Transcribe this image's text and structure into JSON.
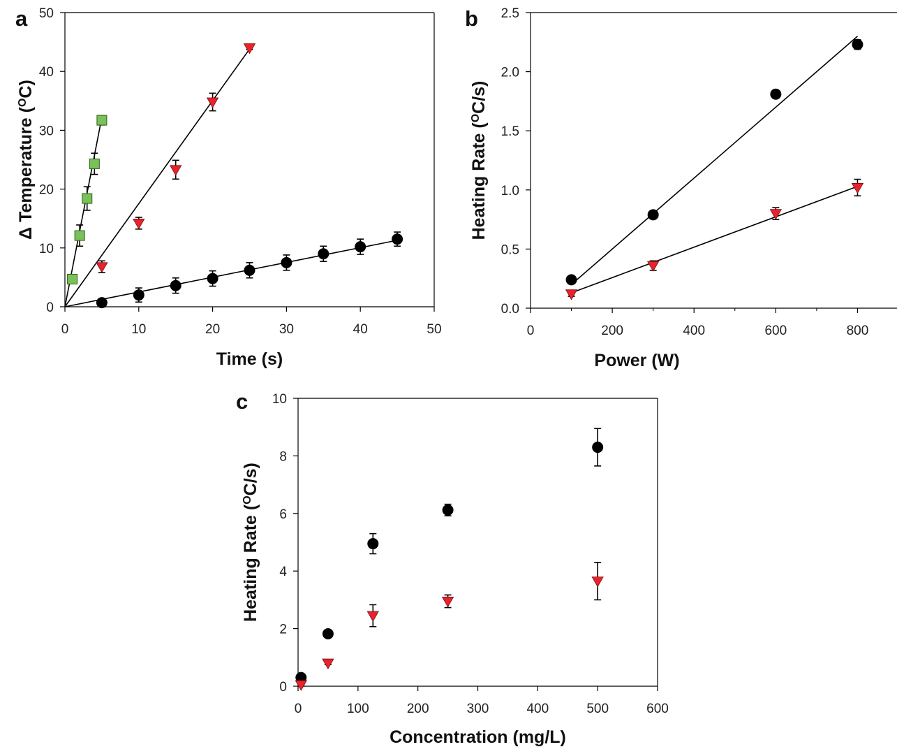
{
  "chart_data": [
    {
      "panel": "a",
      "type": "scatter",
      "xlabel": "Time (s)",
      "ylabel": "Δ Temperature (°C)",
      "ylabel_parts": [
        "Δ Temperature (",
        "O",
        "C)"
      ],
      "xlim": [
        0,
        50
      ],
      "ylim": [
        0,
        50
      ],
      "xticks": [
        0,
        10,
        20,
        30,
        40,
        50
      ],
      "yticks": [
        0,
        10,
        20,
        30,
        40,
        50
      ],
      "grid": false,
      "legend": "none",
      "series": [
        {
          "marker": "circle",
          "color": "#000000",
          "x": [
            5,
            10,
            15,
            20,
            25,
            30,
            35,
            40,
            45
          ],
          "y": [
            0.7,
            2.0,
            3.6,
            4.8,
            6.2,
            7.5,
            9.0,
            10.2,
            11.5
          ],
          "err": [
            0.6,
            1.2,
            1.3,
            1.3,
            1.3,
            1.3,
            1.3,
            1.3,
            1.2
          ],
          "fit": {
            "x": [
              0,
              45
            ],
            "y": [
              0,
              11.3
            ]
          }
        },
        {
          "marker": "triangle-down",
          "color": "#e8232b",
          "x": [
            5,
            10,
            15,
            20,
            25
          ],
          "y": [
            6.8,
            14.2,
            23.3,
            34.8,
            44.0
          ],
          "err": [
            1.0,
            1.0,
            1.6,
            1.5,
            0.3
          ],
          "fit": {
            "x": [
              0,
              25
            ],
            "y": [
              0,
              43.8
            ]
          }
        },
        {
          "marker": "square",
          "color": "#78c257",
          "x": [
            1,
            2,
            3,
            4,
            5
          ],
          "y": [
            4.7,
            12.1,
            18.4,
            24.3,
            31.7
          ],
          "err": [
            0.4,
            1.8,
            2.0,
            1.8,
            0.8
          ],
          "fit": {
            "x": [
              0,
              5
            ],
            "y": [
              0,
              32.2
            ]
          }
        }
      ]
    },
    {
      "panel": "b",
      "type": "scatter",
      "xlabel": "Power (W)",
      "ylabel": "Heating Rate (°C/s)",
      "ylabel_parts": [
        "Heating Rate (",
        "O",
        "C/s)"
      ],
      "xlim": [
        0,
        900
      ],
      "ylim": [
        0.0,
        2.5
      ],
      "xticks": [
        0,
        200,
        400,
        600,
        800
      ],
      "yticks": [
        0.0,
        0.5,
        1.0,
        1.5,
        2.0,
        2.5
      ],
      "ytick_labels": [
        "0.0",
        "0.5",
        "1.0",
        "1.5",
        "2.0",
        "2.5"
      ],
      "grid": false,
      "legend": "none",
      "series": [
        {
          "marker": "circle",
          "color": "#000000",
          "x": [
            100,
            300,
            600,
            800
          ],
          "y": [
            0.24,
            0.79,
            1.81,
            2.23
          ],
          "err": [
            0.02,
            0.02,
            0.02,
            0.04
          ],
          "fit": {
            "x": [
              100,
              800
            ],
            "y": [
              0.2,
              2.3
            ]
          }
        },
        {
          "marker": "triangle-down",
          "color": "#e8232b",
          "x": [
            100,
            300,
            600,
            800
          ],
          "y": [
            0.12,
            0.36,
            0.8,
            1.02
          ],
          "err": [
            0.02,
            0.04,
            0.05,
            0.07
          ],
          "fit": {
            "x": [
              100,
              800
            ],
            "y": [
              0.13,
              1.03
            ]
          }
        }
      ]
    },
    {
      "panel": "c",
      "type": "scatter",
      "xlabel": "Concentration (mg/L)",
      "ylabel": "Heating Rate (°C/s)",
      "ylabel_parts": [
        "Heating Rate (",
        "O",
        "C/s)"
      ],
      "xlim": [
        0,
        600
      ],
      "ylim": [
        0,
        10
      ],
      "xticks": [
        0,
        100,
        200,
        300,
        400,
        500,
        600
      ],
      "yticks": [
        0,
        2,
        4,
        6,
        8,
        10
      ],
      "grid": false,
      "legend": "none",
      "series": [
        {
          "marker": "circle",
          "color": "#000000",
          "x": [
            5,
            50,
            125,
            250,
            500
          ],
          "y": [
            0.3,
            1.82,
            4.95,
            6.12,
            8.3
          ],
          "err": [
            0.05,
            0.08,
            0.35,
            0.2,
            0.65
          ]
        },
        {
          "marker": "triangle-down",
          "color": "#e8232b",
          "x": [
            5,
            50,
            125,
            250,
            500
          ],
          "y": [
            0.05,
            0.8,
            2.45,
            2.95,
            3.65
          ],
          "err": [
            0.05,
            0.05,
            0.38,
            0.22,
            0.65
          ]
        }
      ]
    }
  ]
}
